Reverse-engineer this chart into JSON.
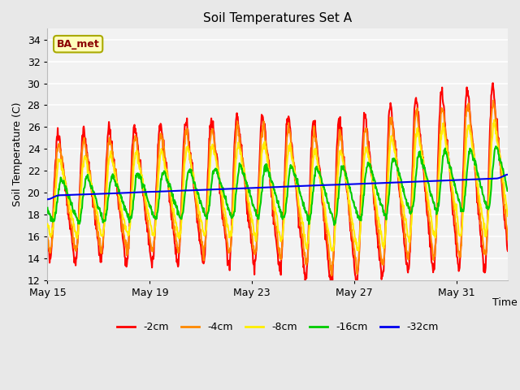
{
  "title": "Soil Temperatures Set A",
  "xlabel": "Time",
  "ylabel": "Soil Temperature (C)",
  "ylim": [
    12,
    35
  ],
  "yticks": [
    12,
    14,
    16,
    18,
    20,
    22,
    24,
    26,
    28,
    30,
    32,
    34
  ],
  "start_day": 0,
  "end_day": 18,
  "colors": {
    "-2cm": "#ff0000",
    "-4cm": "#ff8800",
    "-8cm": "#ffee00",
    "-16cm": "#00cc00",
    "-32cm": "#0000ee"
  },
  "annotation_text": "BA_met",
  "xtick_labels": [
    "May 15",
    "May 19",
    "May 23",
    "May 27",
    "May 31"
  ],
  "xtick_positions": [
    0,
    4,
    8,
    12,
    16
  ],
  "background_color": "#e8e8e8",
  "plot_bg_color": "#f2f2f2",
  "grid_color": "#ffffff",
  "legend_labels": [
    "-2cm",
    "-4cm",
    "-8cm",
    "-16cm",
    "-32cm"
  ],
  "legend_colors": [
    "#ff0000",
    "#ff8800",
    "#ffee00",
    "#00cc00",
    "#0000ee"
  ]
}
